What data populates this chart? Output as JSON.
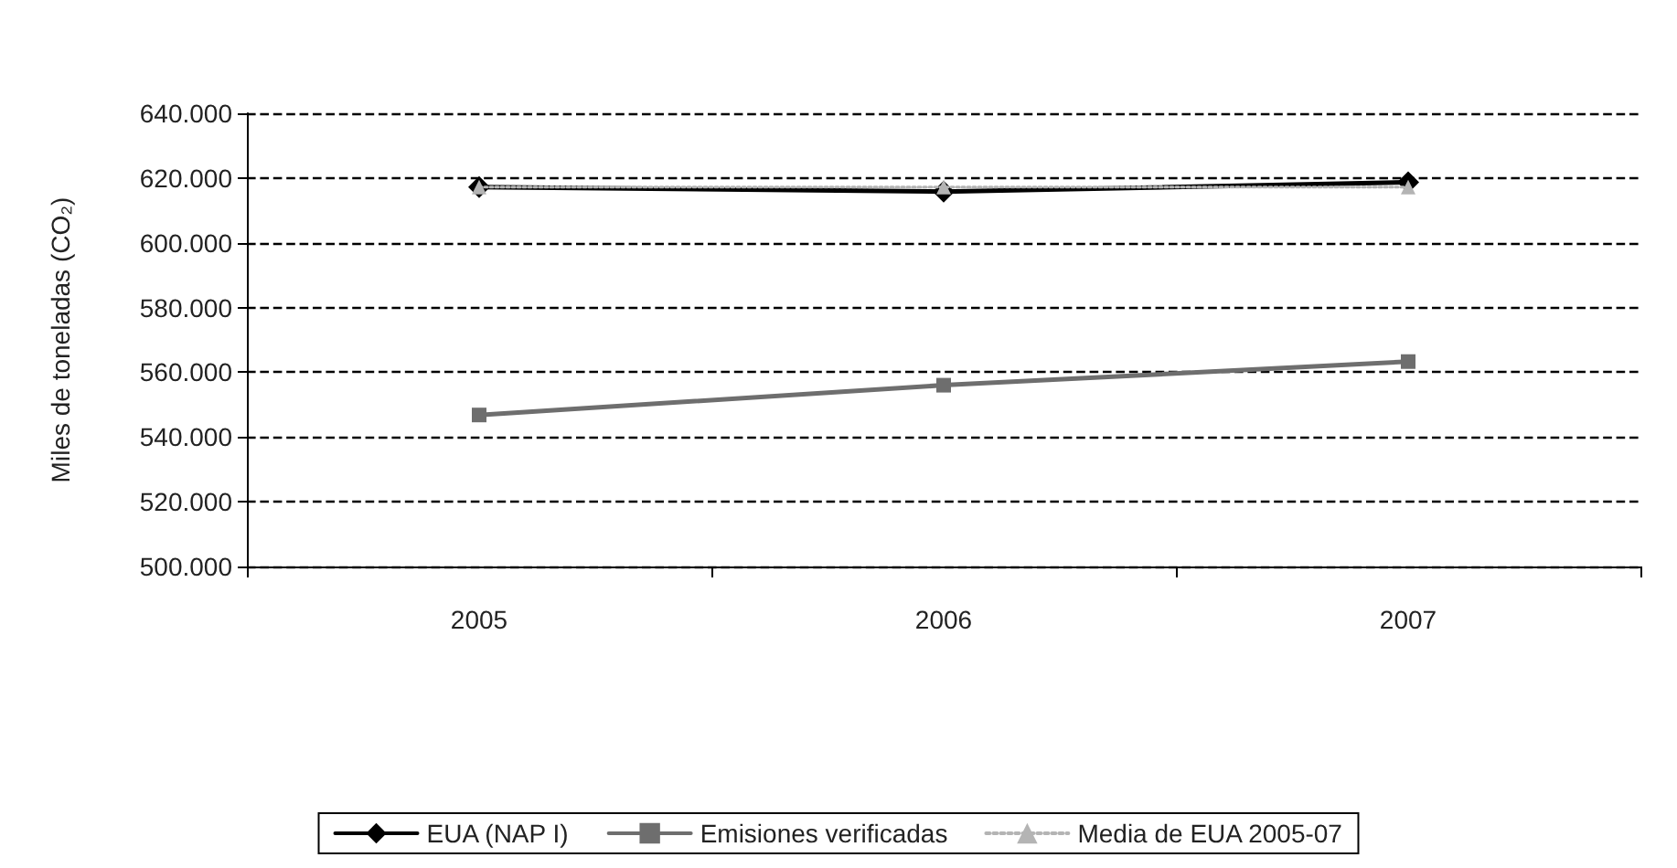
{
  "chart_data": {
    "type": "line",
    "ylabel": "Miles de toneladas (CO₂)",
    "categories": [
      "2005",
      "2006",
      "2007"
    ],
    "series": [
      {
        "name": "EUA (NAP I)",
        "color": "#000000",
        "marker": "diamond",
        "line_style": "solid",
        "values": [
          617200,
          615800,
          618700
        ]
      },
      {
        "name": "Emisiones verificadas",
        "color": "#6e6e6e",
        "marker": "square",
        "line_style": "solid",
        "values": [
          546800,
          556000,
          563300
        ]
      },
      {
        "name": "Media de EUA 2005-07",
        "color": "#b4b4b4",
        "marker": "triangle",
        "line_style": "dotted",
        "values": [
          617200,
          617200,
          617200
        ]
      }
    ],
    "ylim": [
      500000,
      640000
    ],
    "yticks": [
      {
        "value": 500000,
        "label": "500.000"
      },
      {
        "value": 520000,
        "label": "520.000"
      },
      {
        "value": 540000,
        "label": "540.000"
      },
      {
        "value": 560000,
        "label": "560.000"
      },
      {
        "value": 580000,
        "label": "580.000"
      },
      {
        "value": 600000,
        "label": "600.000"
      },
      {
        "value": 620000,
        "label": "620.000"
      },
      {
        "value": 640000,
        "label": "640.000"
      }
    ],
    "grid": "y",
    "legend": "bottom"
  }
}
